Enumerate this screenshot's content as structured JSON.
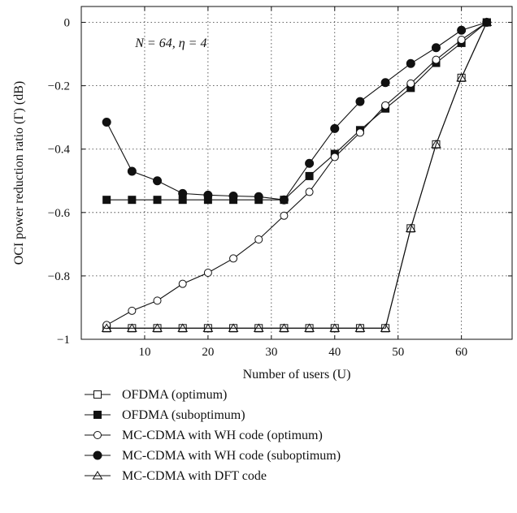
{
  "chart_data": {
    "type": "line",
    "title": "",
    "xlabel": "Number of users (U)",
    "ylabel": "OCI power reduction ratio (Γ) (dB)",
    "xlim": [
      0,
      68
    ],
    "ylim": [
      -1,
      0.05
    ],
    "xticks": [
      10,
      20,
      30,
      40,
      50,
      60
    ],
    "yticks": [
      0,
      -0.2,
      -0.4,
      -0.6,
      -0.8,
      -1
    ],
    "xtick_labels": [
      "10",
      "20",
      "30",
      "40",
      "50",
      "60"
    ],
    "ytick_labels": [
      "0",
      "−0.2",
      "−0.4",
      "−0.6",
      "−0.8",
      "−1"
    ],
    "grid": "dotted",
    "legend_position": "below",
    "annotation": "N = 64, η = 4",
    "series": [
      {
        "name": "OFDMA (optimum)",
        "marker": "open-square",
        "x": [
          4,
          8,
          12,
          16,
          20,
          24,
          28,
          32,
          36,
          40,
          44,
          48,
          52,
          56,
          60,
          64
        ],
        "y": [
          -0.965,
          -0.965,
          -0.965,
          -0.965,
          -0.965,
          -0.965,
          -0.965,
          -0.965,
          -0.965,
          -0.965,
          -0.965,
          -0.965,
          -0.65,
          -0.385,
          -0.175,
          0
        ]
      },
      {
        "name": "OFDMA (suboptimum)",
        "marker": "filled-square",
        "x": [
          4,
          8,
          12,
          16,
          20,
          24,
          28,
          32,
          36,
          40,
          44,
          48,
          52,
          56,
          60,
          64
        ],
        "y": [
          -0.56,
          -0.56,
          -0.56,
          -0.56,
          -0.56,
          -0.56,
          -0.56,
          -0.56,
          -0.485,
          -0.415,
          -0.34,
          -0.272,
          -0.207,
          -0.128,
          -0.065,
          0
        ]
      },
      {
        "name": "MC-CDMA with WH code (optimum)",
        "marker": "open-circle",
        "x": [
          4,
          8,
          12,
          16,
          20,
          24,
          28,
          32,
          36,
          40,
          44,
          48,
          52,
          56,
          60,
          64
        ],
        "y": [
          -0.955,
          -0.91,
          -0.878,
          -0.825,
          -0.79,
          -0.745,
          -0.685,
          -0.61,
          -0.535,
          -0.425,
          -0.348,
          -0.262,
          -0.193,
          -0.118,
          -0.055,
          0
        ]
      },
      {
        "name": "MC-CDMA with WH code (suboptimum)",
        "marker": "filled-circle",
        "x": [
          4,
          8,
          12,
          16,
          20,
          24,
          28,
          32,
          36,
          40,
          44,
          48,
          52,
          56,
          60,
          64
        ],
        "y": [
          -0.315,
          -0.47,
          -0.5,
          -0.54,
          -0.545,
          -0.548,
          -0.55,
          -0.56,
          -0.445,
          -0.335,
          -0.25,
          -0.19,
          -0.13,
          -0.08,
          -0.025,
          0
        ]
      },
      {
        "name": "MC-CDMA with DFT code",
        "marker": "open-triangle",
        "x": [
          4,
          8,
          12,
          16,
          20,
          24,
          28,
          32,
          36,
          40,
          44,
          48,
          52,
          56,
          60,
          64
        ],
        "y": [
          -0.965,
          -0.965,
          -0.965,
          -0.965,
          -0.965,
          -0.965,
          -0.965,
          -0.965,
          -0.965,
          -0.965,
          -0.965,
          -0.965,
          -0.65,
          -0.385,
          -0.175,
          0
        ]
      }
    ]
  }
}
